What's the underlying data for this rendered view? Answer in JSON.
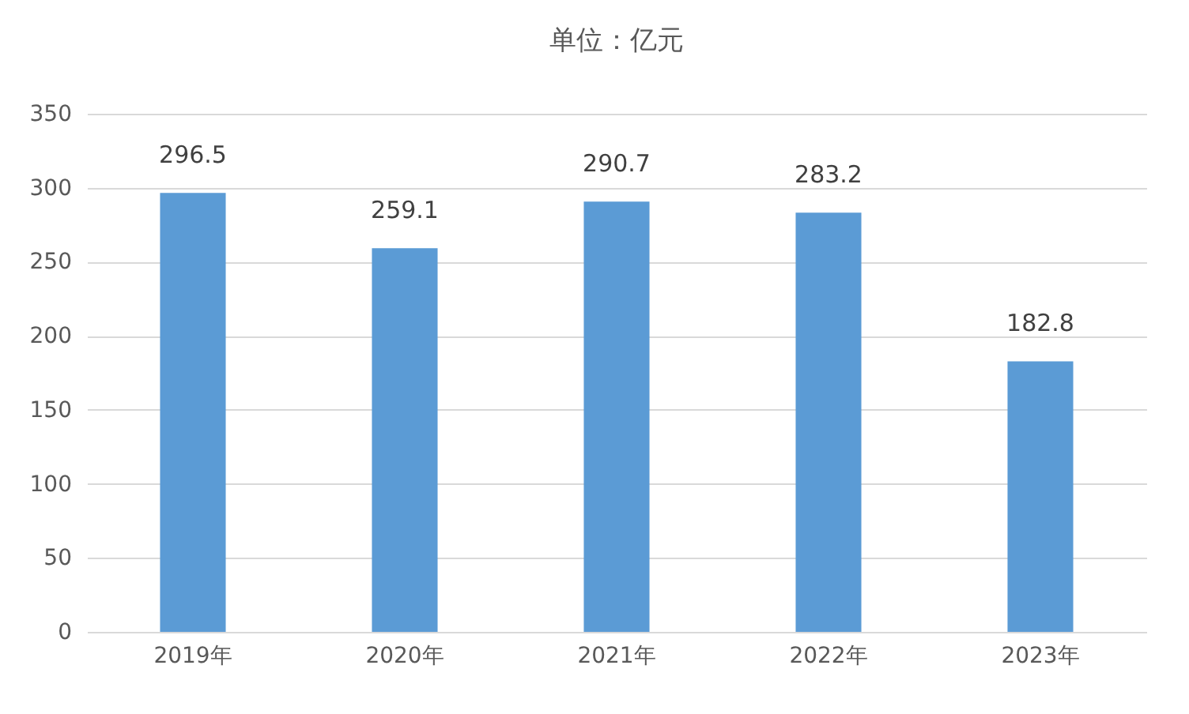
{
  "chart_data": {
    "type": "bar",
    "title": "单位：亿元",
    "categories": [
      "2019年",
      "2020年",
      "2021年",
      "2022年",
      "2023年"
    ],
    "values": [
      296.5,
      259.1,
      290.7,
      283.2,
      182.8
    ],
    "color": "#5b9bd5",
    "ylim": [
      0,
      350
    ],
    "yticks": [
      0,
      50,
      100,
      150,
      200,
      250,
      300,
      350
    ],
    "grid": "y",
    "data_labels": true
  }
}
